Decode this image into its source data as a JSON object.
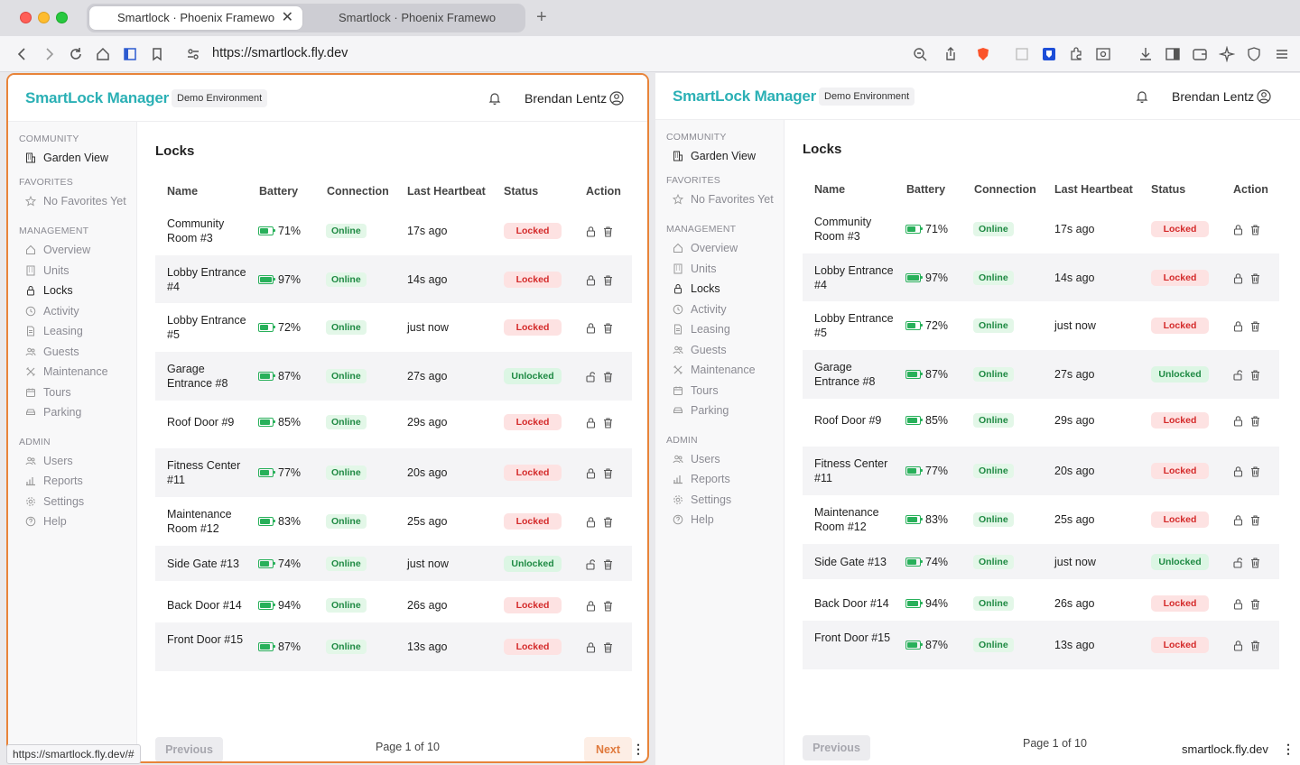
{
  "browser": {
    "tabs": [
      {
        "title": "Smartlock · Phoenix Framework",
        "active": true
      },
      {
        "title": "Smartlock · Phoenix Framework",
        "active": false
      }
    ],
    "url": "https://smartlock.fly.dev",
    "hover_link": "https://smartlock.fly.dev/#",
    "right_pane_url": "smartlock.fly.dev"
  },
  "app": {
    "brand": "SmartLock Manager",
    "env_badge": "Demo Environment",
    "user_name": "Brendan Lentz",
    "accent_color": "#2bb0b5"
  },
  "sidebar": {
    "community_label": "COMMUNITY",
    "community_item": "Garden View",
    "favorites_label": "FAVORITES",
    "favorites_item": "No Favorites Yet",
    "management_label": "MANAGEMENT",
    "management_items": [
      "Overview",
      "Units",
      "Locks",
      "Activity",
      "Leasing",
      "Guests",
      "Maintenance",
      "Tours",
      "Parking"
    ],
    "admin_label": "ADMIN",
    "admin_items": [
      "Users",
      "Reports",
      "Settings",
      "Help"
    ]
  },
  "page": {
    "title": "Locks",
    "columns": [
      "Name",
      "Battery",
      "Connection",
      "Last Heartbeat",
      "Status",
      "Action"
    ],
    "locks": [
      {
        "name": "Community Room #3",
        "battery": "71%",
        "battery_level": 0.71,
        "connection": "Online",
        "heartbeat": "17s ago",
        "status": "Locked"
      },
      {
        "name": "Lobby Entrance #4",
        "battery": "97%",
        "battery_level": 0.97,
        "connection": "Online",
        "heartbeat": "14s ago",
        "status": "Locked"
      },
      {
        "name": "Lobby Entrance #5",
        "battery": "72%",
        "battery_level": 0.72,
        "connection": "Online",
        "heartbeat": "just now",
        "status": "Locked"
      },
      {
        "name": "Garage Entrance #8",
        "battery": "87%",
        "battery_level": 0.87,
        "connection": "Online",
        "heartbeat": "27s ago",
        "status": "Unlocked"
      },
      {
        "name": "Roof Door #9",
        "battery": "85%",
        "battery_level": 0.85,
        "connection": "Online",
        "heartbeat": "29s ago",
        "status": "Locked"
      },
      {
        "name": "Fitness Center #11",
        "battery": "77%",
        "battery_level": 0.77,
        "connection": "Online",
        "heartbeat": "20s ago",
        "status": "Locked"
      },
      {
        "name": "Maintenance Room #12",
        "battery": "83%",
        "battery_level": 0.83,
        "connection": "Online",
        "heartbeat": "25s ago",
        "status": "Locked"
      },
      {
        "name": "Side Gate #13",
        "battery": "74%",
        "battery_level": 0.74,
        "connection": "Online",
        "heartbeat": "just now",
        "status": "Unlocked"
      },
      {
        "name": "Back Door #14",
        "battery": "94%",
        "battery_level": 0.94,
        "connection": "Online",
        "heartbeat": "26s ago",
        "status": "Locked"
      },
      {
        "name": "Front Door #15",
        "battery": "87%",
        "battery_level": 0.87,
        "connection": "Online",
        "heartbeat": "13s ago",
        "status": "Locked"
      }
    ],
    "pagination": {
      "previous": "Previous",
      "next": "Next",
      "info": "Page 1 of 10"
    }
  }
}
